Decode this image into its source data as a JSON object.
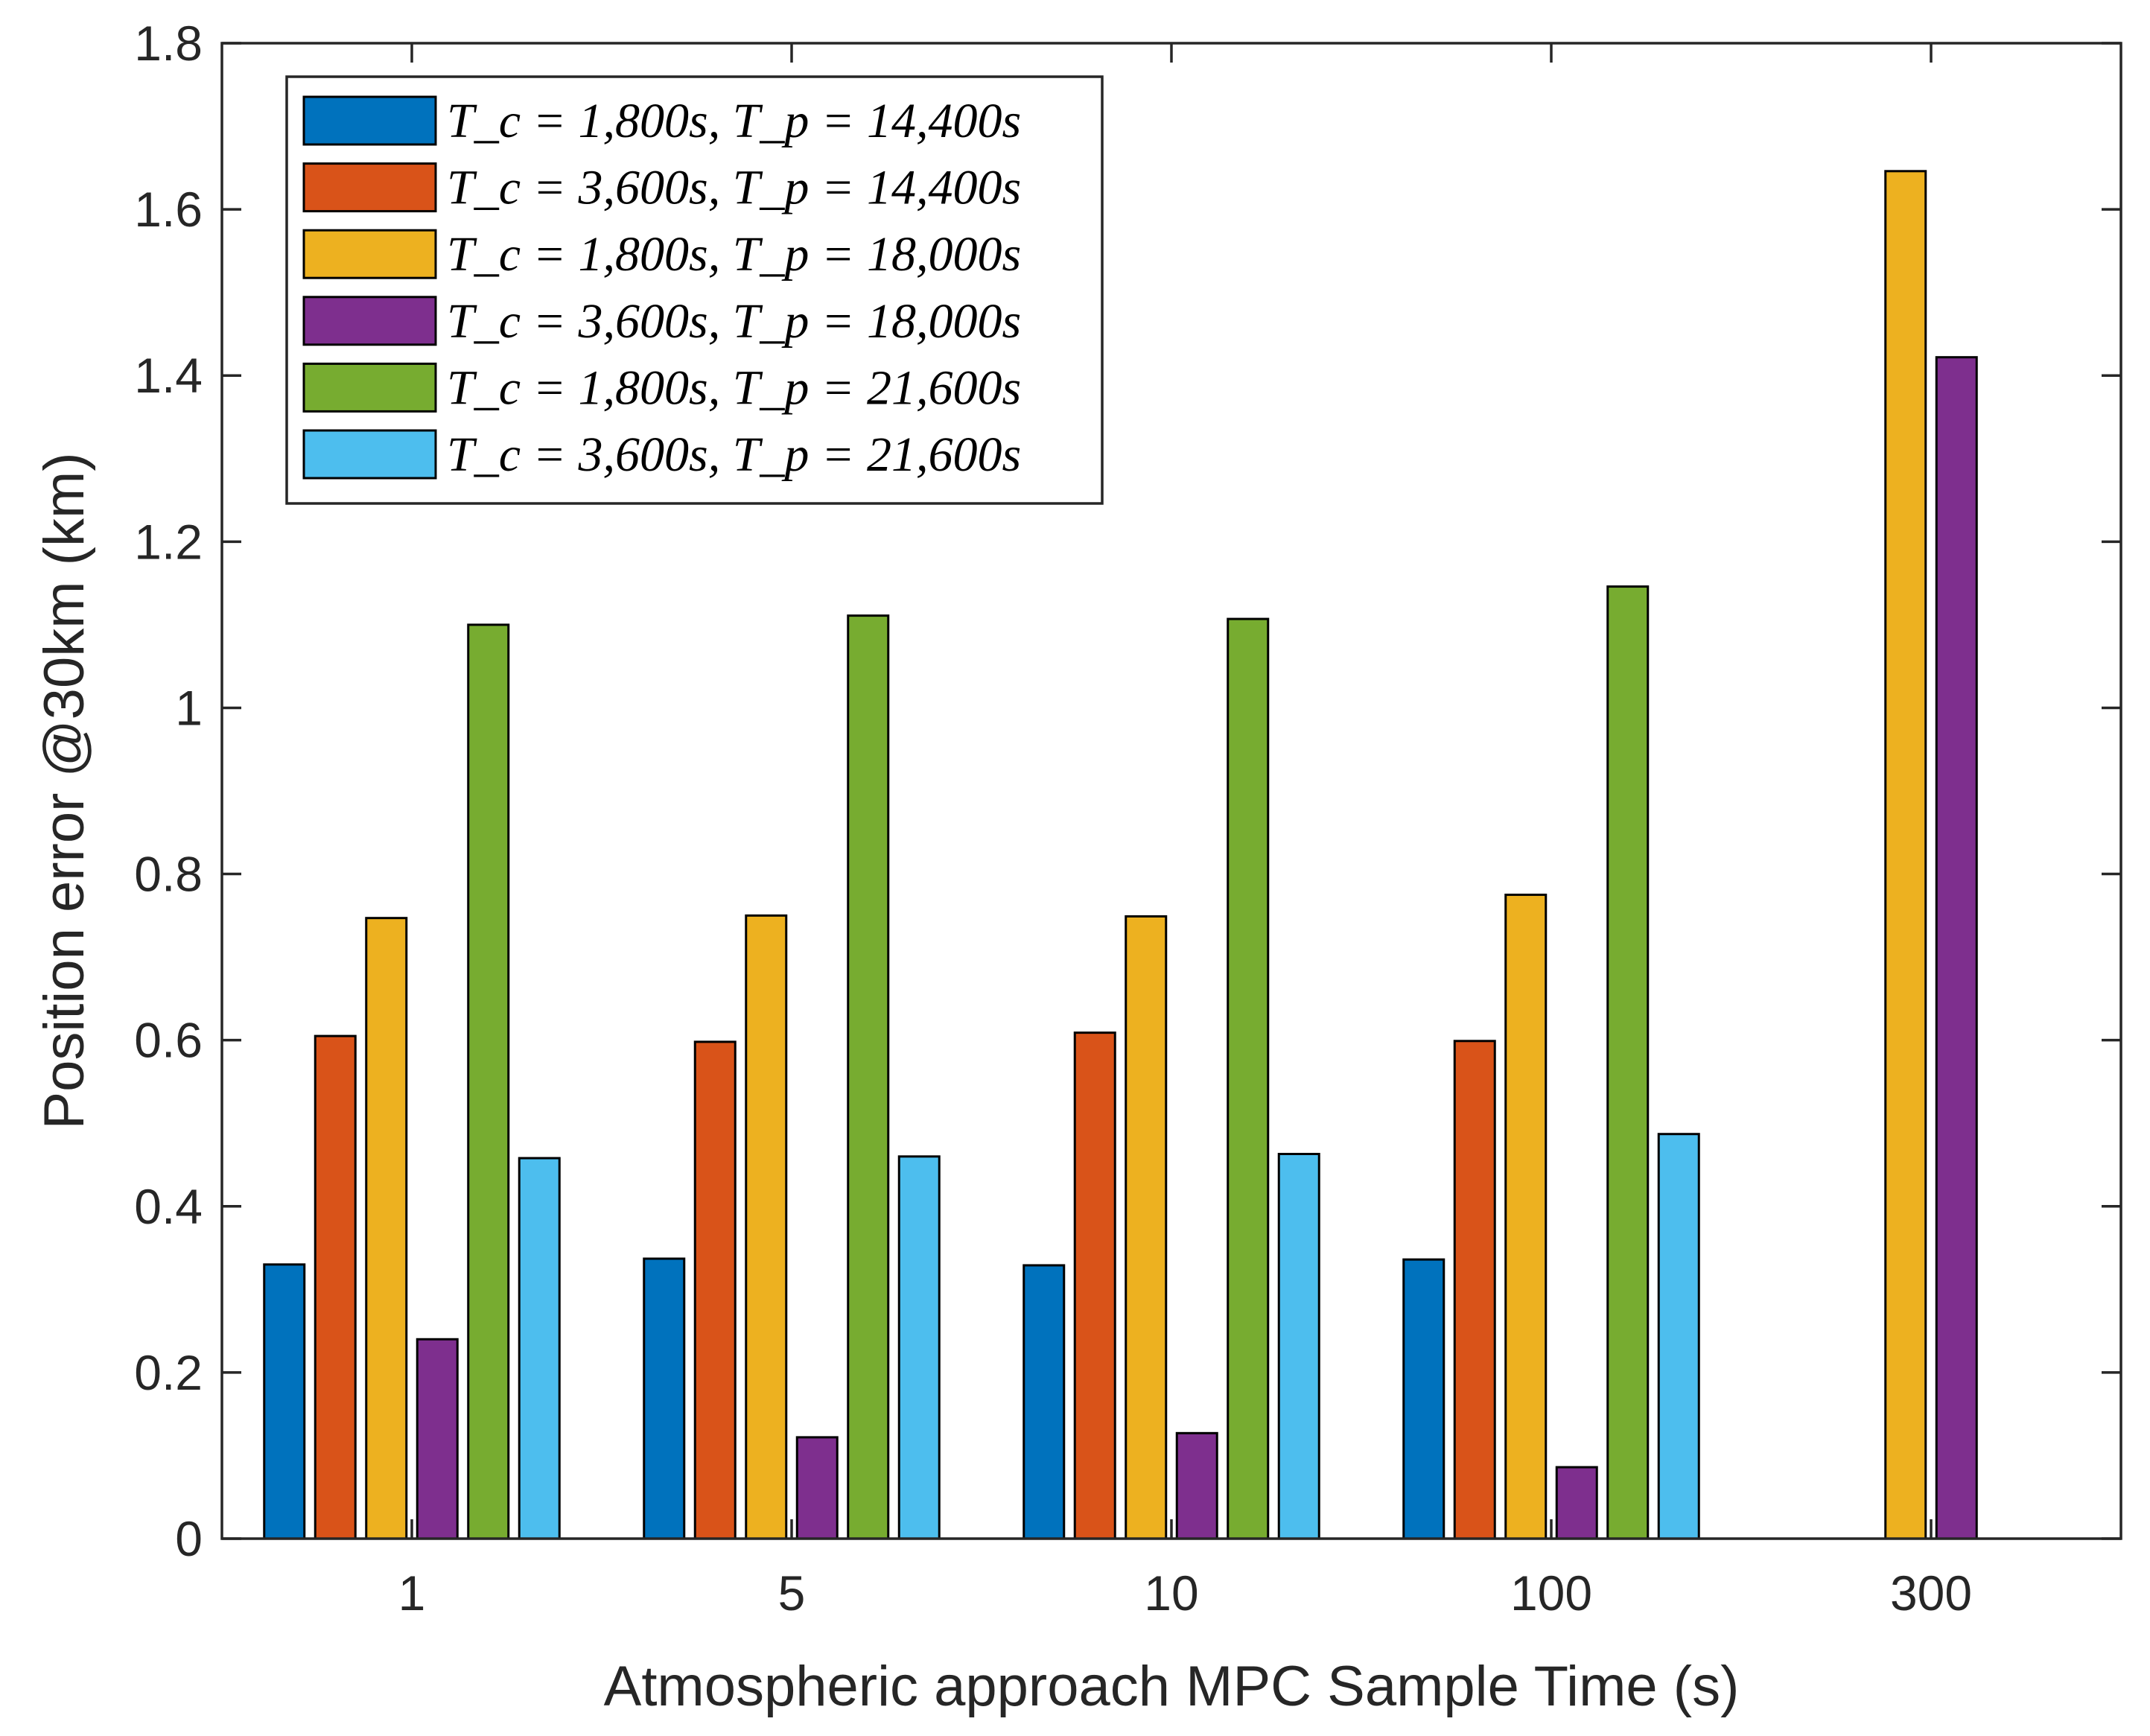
{
  "chart_data": {
    "type": "bar",
    "xlabel": "Atmospheric approach MPC Sample Time (s)",
    "ylabel": "Position error @30km (km)",
    "categories": [
      "1",
      "5",
      "10",
      "100",
      "300"
    ],
    "ylim": [
      0,
      1.8
    ],
    "yticks": [
      0,
      0.2,
      0.4,
      0.6,
      0.8,
      1,
      1.2,
      1.4,
      1.6,
      1.8
    ],
    "ytick_labels": [
      "0",
      "0.2",
      "0.4",
      "0.6",
      "0.8",
      "1",
      "1.2",
      "1.4",
      "1.6",
      "1.8"
    ],
    "grid": false,
    "legend_position": "top-left",
    "series": [
      {
        "name": "T_c = 1,800s, T_p = 14,400s",
        "color": "#0072BD",
        "values": [
          0.33,
          0.337,
          0.329,
          0.336,
          null
        ]
      },
      {
        "name": "T_c = 3,600s, T_p = 14,400s",
        "color": "#D95319",
        "values": [
          0.605,
          0.598,
          0.609,
          0.599,
          null
        ]
      },
      {
        "name": "T_c = 1,800s, T_p = 18,000s",
        "color": "#EDB120",
        "values": [
          0.747,
          0.75,
          0.749,
          0.775,
          1.646
        ]
      },
      {
        "name": "T_c = 3,600s, T_p = 18,000s",
        "color": "#7E2F8E",
        "values": [
          0.24,
          0.122,
          0.127,
          0.086,
          1.422
        ]
      },
      {
        "name": "T_c = 1,800s, T_p = 21,600s",
        "color": "#77AC30",
        "values": [
          1.1,
          1.111,
          1.107,
          1.146,
          null
        ]
      },
      {
        "name": "T_c = 3,600s, T_p = 21,600s",
        "color": "#4DBEEE",
        "values": [
          0.458,
          0.46,
          0.463,
          0.487,
          null
        ]
      }
    ]
  }
}
